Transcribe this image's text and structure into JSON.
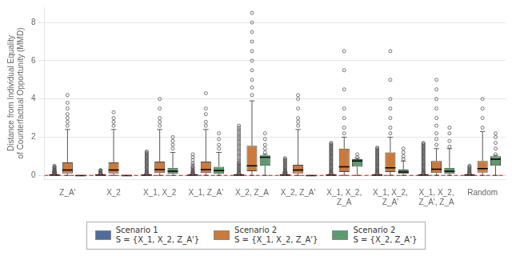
{
  "chart_data": {
    "type": "box",
    "y_label": "Distance from Individual Equality\nof Counterfactual Opportunity (MMD)",
    "categories": [
      "Z_A'",
      "X_2",
      "X_1, X_2",
      "X_1, Z_A'",
      "X_2, Z_A",
      "X_2, Z_A'",
      "X_1, X_2,\nZ_A",
      "X_1, X_2,\nZ_A'",
      "X_1, X_2,\nZ_A', Z_A",
      "Random"
    ],
    "ylim": [
      -0.2,
      8.8
    ],
    "yticks": [
      0,
      2,
      4,
      6,
      8
    ],
    "grid": true,
    "legend": "bottom",
    "annotations": [
      {
        "type": "hline",
        "y": 0.0,
        "color": "red",
        "line_style": "dashed"
      }
    ],
    "series": [
      {
        "name": "Scenario 1\nS = {X_1, X_2, Z_A'}",
        "color": "#4e6d9e",
        "marker": "circle",
        "medians": [
          0.02,
          0.02,
          0.02,
          0.02,
          0.02,
          0.02,
          0.02,
          0.02,
          0.02,
          0.02
        ],
        "q1": [
          0.01,
          0.01,
          0.01,
          0.01,
          0.01,
          0.01,
          0.01,
          0.01,
          0.01,
          0.01
        ],
        "q3": [
          0.03,
          0.03,
          0.03,
          0.03,
          0.03,
          0.03,
          0.03,
          0.03,
          0.03,
          0.03
        ],
        "whislo": [
          0.0,
          0.0,
          0.0,
          0.0,
          0.0,
          0.0,
          0.0,
          0.0,
          0.0,
          0.0
        ],
        "whishi": [
          0.06,
          0.06,
          0.06,
          0.06,
          0.06,
          0.06,
          0.06,
          0.06,
          0.06,
          0.06
        ],
        "outliers": [
          [
            0.08,
            0.1,
            0.12,
            0.14,
            0.16,
            0.18,
            0.2,
            0.22,
            0.25,
            0.28,
            0.3,
            0.35,
            0.38,
            0.42,
            0.45,
            0.5
          ],
          [
            0.08,
            0.1,
            0.12,
            0.15,
            0.18,
            0.22,
            0.25,
            0.28,
            0.22
          ],
          [
            0.08,
            0.1,
            0.12,
            0.15,
            0.18,
            0.2,
            0.25,
            0.3,
            0.35,
            0.4,
            0.45,
            0.5,
            0.55,
            0.6,
            0.65,
            0.7,
            0.75,
            0.8,
            0.85,
            0.9,
            0.95,
            1.0,
            1.05,
            1.1,
            1.15,
            1.2,
            1.25
          ],
          [
            0.08,
            0.1,
            0.12,
            0.14,
            0.16,
            0.18,
            0.2,
            0.25,
            0.3,
            0.35,
            0.4,
            0.45,
            0.55,
            0.65,
            0.8,
            0.95,
            1.1
          ],
          [
            0.08,
            0.1,
            0.12,
            0.15,
            0.2,
            0.25,
            0.3,
            0.35,
            0.4,
            0.45,
            0.5,
            0.55,
            0.6,
            0.65,
            0.7,
            0.8,
            0.9,
            1.0,
            1.1,
            1.2,
            1.3,
            1.4,
            1.5,
            1.6,
            1.7,
            1.8,
            1.9,
            2.0,
            2.1,
            2.2,
            2.3,
            2.4,
            2.5,
            2.6
          ],
          [
            0.08,
            0.1,
            0.12,
            0.15,
            0.18,
            0.22,
            0.26,
            0.3,
            0.35,
            0.4,
            0.45,
            0.5,
            0.55,
            0.6,
            0.65,
            0.7,
            0.75,
            0.8,
            0.85,
            0.9
          ],
          [
            0.08,
            0.1,
            0.12,
            0.15,
            0.18,
            0.22,
            0.26,
            0.3,
            0.35,
            0.4,
            0.45,
            0.5,
            0.55,
            0.6,
            0.65,
            0.7,
            0.75,
            0.8,
            0.85,
            0.9,
            0.95,
            1.0,
            1.05,
            1.1,
            1.15,
            1.2,
            1.25,
            1.3,
            1.35,
            1.4,
            1.45,
            1.5,
            1.55,
            1.6,
            1.65,
            1.7
          ],
          [
            0.08,
            0.1,
            0.12,
            0.15,
            0.18,
            0.22,
            0.26,
            0.3,
            0.35,
            0.4,
            0.45,
            0.5,
            0.55,
            0.6,
            0.65,
            0.7,
            0.75,
            0.8,
            0.85,
            0.9,
            0.95,
            1.0,
            1.05,
            1.1,
            1.15,
            1.2,
            1.25,
            1.3,
            1.35,
            1.4,
            1.45
          ],
          [
            0.08,
            0.1,
            0.12,
            0.15,
            0.18,
            0.22,
            0.26,
            0.3,
            0.35,
            0.4,
            0.45,
            0.5,
            0.55,
            0.6,
            0.65,
            0.7,
            0.75,
            0.8,
            0.85,
            0.9,
            0.95,
            1.0,
            1.05,
            1.1,
            1.15,
            1.2,
            1.25,
            1.3,
            1.35,
            1.4,
            1.45,
            1.5,
            1.55,
            1.6,
            1.65,
            1.7
          ],
          [
            0.08,
            0.1,
            0.12,
            0.15,
            0.18,
            0.22,
            0.26,
            0.3,
            0.35,
            0.4,
            0.45,
            0.5
          ]
        ],
        "triangle_outliers": [
          [
            0.22
          ],
          [],
          [],
          [],
          [],
          [
            0.22
          ],
          [],
          [],
          [],
          []
        ]
      },
      {
        "name": "Scenario 2\nS = {X_1, X_2, Z_A'}",
        "color": "#cc7a3a",
        "marker": "circle",
        "medians": [
          0.28,
          0.28,
          0.3,
          0.3,
          0.5,
          0.28,
          0.45,
          0.4,
          0.32,
          0.35
        ],
        "q1": [
          0.1,
          0.1,
          0.12,
          0.12,
          0.22,
          0.1,
          0.18,
          0.18,
          0.12,
          0.15
        ],
        "q3": [
          0.68,
          0.68,
          0.72,
          0.72,
          1.55,
          0.55,
          1.4,
          1.2,
          0.75,
          0.75
        ],
        "whislo": [
          0.0,
          0.0,
          0.0,
          0.0,
          0.0,
          0.0,
          0.0,
          0.0,
          0.0,
          0.0
        ],
        "whishi": [
          2.4,
          2.4,
          2.4,
          2.4,
          3.9,
          2.4,
          2.0,
          2.0,
          1.4,
          2.3
        ],
        "outliers": [
          [
            2.6,
            2.8,
            3.0,
            3.2,
            3.5,
            3.8,
            4.2
          ],
          [
            2.6,
            2.8,
            3.0,
            3.3
          ],
          [
            2.6,
            2.8,
            3.0,
            3.5,
            4.0
          ],
          [
            2.6,
            2.8,
            3.2,
            3.5,
            4.3
          ],
          [
            4.2,
            4.6,
            5.0,
            5.5,
            6.0,
            6.5,
            7.0,
            7.5,
            8.0,
            8.5
          ],
          [
            2.6,
            2.8,
            3.0,
            3.5,
            4.0,
            4.2
          ],
          [
            2.2,
            2.5,
            3.0,
            3.5,
            4.5,
            5.5,
            6.5
          ],
          [
            2.2,
            2.5,
            3.0,
            3.5,
            4.0,
            5.0,
            6.5
          ],
          [
            1.6,
            1.9,
            2.2,
            2.6,
            3.0,
            3.5,
            4.0,
            4.5,
            5.0
          ],
          [
            2.5,
            3.0,
            3.5,
            4.0
          ]
        ]
      },
      {
        "name": "Scenario 2\nS = {X_2, Z_A'}",
        "color": "#5a9c6e",
        "marker": "circle",
        "medians": [
          -0.01,
          -0.01,
          0.22,
          0.25,
          0.95,
          -0.01,
          0.75,
          0.18,
          0.22,
          0.85
        ],
        "q1": [
          -0.01,
          -0.01,
          0.08,
          0.08,
          0.5,
          -0.01,
          0.45,
          0.08,
          0.08,
          0.5
        ],
        "q3": [
          -0.01,
          -0.01,
          0.4,
          0.45,
          1.05,
          -0.01,
          0.85,
          0.3,
          0.4,
          1.0
        ],
        "whislo": [
          -0.01,
          -0.01,
          0.0,
          0.0,
          0.0,
          -0.01,
          0.0,
          0.0,
          0.0,
          0.0
        ],
        "whishi": [
          -0.01,
          -0.01,
          1.2,
          1.2,
          1.1,
          -0.01,
          0.9,
          0.75,
          1.4,
          1.05
        ],
        "outliers": [
          [],
          [],
          [
            1.4,
            1.6,
            1.8,
            2.0
          ],
          [
            1.4,
            1.6,
            1.9,
            2.2
          ],
          [
            1.2,
            1.4,
            1.6,
            1.9,
            2.2
          ],
          [],
          [
            0.95,
            1.1
          ],
          [
            0.85,
            1.0,
            1.2,
            1.4
          ],
          [
            1.5,
            1.8,
            2.2,
            2.5
          ],
          [
            1.1,
            1.4,
            1.7,
            2.0,
            2.2
          ]
        ]
      }
    ]
  }
}
